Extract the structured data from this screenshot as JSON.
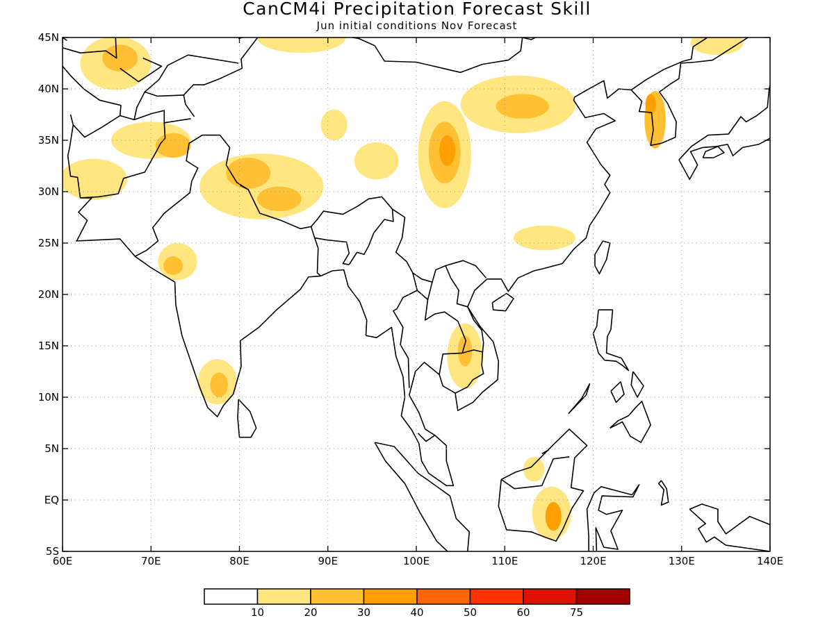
{
  "title": "CanCM4i Precipitation Forecast Skill",
  "subtitle": "Jun initial conditions   Nov Forecast",
  "map": {
    "lon_range": [
      60,
      140
    ],
    "lat_range": [
      -5,
      45
    ],
    "lon_ticks": [
      {
        "value": 60,
        "label": "60E"
      },
      {
        "value": 70,
        "label": "70E"
      },
      {
        "value": 80,
        "label": "80E"
      },
      {
        "value": 90,
        "label": "90E"
      },
      {
        "value": 100,
        "label": "100E"
      },
      {
        "value": 110,
        "label": "110E"
      },
      {
        "value": 120,
        "label": "120E"
      },
      {
        "value": 130,
        "label": "130E"
      },
      {
        "value": 140,
        "label": "140E"
      }
    ],
    "lat_ticks": [
      {
        "value": 45,
        "label": "45N"
      },
      {
        "value": 40,
        "label": "40N"
      },
      {
        "value": 35,
        "label": "35N"
      },
      {
        "value": 30,
        "label": "30N"
      },
      {
        "value": 25,
        "label": "25N"
      },
      {
        "value": 20,
        "label": "20N"
      },
      {
        "value": 15,
        "label": "15N"
      },
      {
        "value": 10,
        "label": "10N"
      },
      {
        "value": 5,
        "label": "5N"
      },
      {
        "value": 0,
        "label": "EQ"
      },
      {
        "value": -5,
        "label": "5S"
      }
    ],
    "grid": true,
    "skill_regions": [
      {
        "lon": 66,
        "lat": 42.5,
        "rx": 4,
        "ry": 2.6,
        "level": 1
      },
      {
        "lon": 66.5,
        "lat": 43,
        "rx": 2,
        "ry": 1.3,
        "level": 2
      },
      {
        "lon": 70,
        "lat": 35,
        "rx": 4.5,
        "ry": 1.8,
        "level": 1
      },
      {
        "lon": 72.5,
        "lat": 34.5,
        "rx": 2,
        "ry": 1.2,
        "level": 2
      },
      {
        "lon": 63.5,
        "lat": 31.2,
        "rx": 3.8,
        "ry": 2,
        "level": 1
      },
      {
        "lon": 87,
        "lat": 45,
        "rx": 5,
        "ry": 1.5,
        "level": 1
      },
      {
        "lon": 82.5,
        "lat": 30.5,
        "rx": 7,
        "ry": 3.2,
        "level": 1
      },
      {
        "lon": 81,
        "lat": 31.8,
        "rx": 2.5,
        "ry": 1.5,
        "level": 2
      },
      {
        "lon": 84.5,
        "lat": 29.3,
        "rx": 2.5,
        "ry": 1.2,
        "level": 2
      },
      {
        "lon": 73,
        "lat": 23.2,
        "rx": 2.2,
        "ry": 1.8,
        "level": 1
      },
      {
        "lon": 72.5,
        "lat": 22.8,
        "rx": 1.1,
        "ry": 0.9,
        "level": 2
      },
      {
        "lon": 77.5,
        "lat": 11.5,
        "rx": 2.2,
        "ry": 2.2,
        "level": 1
      },
      {
        "lon": 77.7,
        "lat": 11.2,
        "rx": 1,
        "ry": 1.2,
        "level": 2
      },
      {
        "lon": 95.5,
        "lat": 33,
        "rx": 2.5,
        "ry": 1.8,
        "level": 1
      },
      {
        "lon": 90.7,
        "lat": 36.5,
        "rx": 1.5,
        "ry": 1.5,
        "level": 1
      },
      {
        "lon": 103.2,
        "lat": 33.6,
        "rx": 3,
        "ry": 5.2,
        "level": 1
      },
      {
        "lon": 103.2,
        "lat": 33.8,
        "rx": 1.8,
        "ry": 3,
        "level": 2
      },
      {
        "lon": 103.5,
        "lat": 34,
        "rx": 0.9,
        "ry": 1.5,
        "level": 3
      },
      {
        "lon": 111.5,
        "lat": 38.5,
        "rx": 6.5,
        "ry": 2.8,
        "level": 1
      },
      {
        "lon": 112,
        "lat": 38.3,
        "rx": 3,
        "ry": 1.2,
        "level": 2
      },
      {
        "lon": 114.5,
        "lat": 25.5,
        "rx": 3.5,
        "ry": 1.2,
        "level": 1
      },
      {
        "lon": 105.5,
        "lat": 14,
        "rx": 2,
        "ry": 3.2,
        "level": 1
      },
      {
        "lon": 105.5,
        "lat": 14.5,
        "rx": 0.8,
        "ry": 1.5,
        "level": 2
      },
      {
        "lon": 115.3,
        "lat": -1.3,
        "rx": 2.2,
        "ry": 2.6,
        "level": 1
      },
      {
        "lon": 115.5,
        "lat": -1.6,
        "rx": 0.9,
        "ry": 1.4,
        "level": 3
      },
      {
        "lon": 113.3,
        "lat": 3,
        "rx": 1.2,
        "ry": 1.2,
        "level": 1
      },
      {
        "lon": 127,
        "lat": 37,
        "rx": 1.2,
        "ry": 2.8,
        "level": 2
      },
      {
        "lon": 126.5,
        "lat": 38.5,
        "rx": 0.6,
        "ry": 1,
        "level": 3
      },
      {
        "lon": 134,
        "lat": 44.5,
        "rx": 3,
        "ry": 1.2,
        "level": 1
      }
    ]
  },
  "colorbar": {
    "labels": [
      "10",
      "20",
      "30",
      "40",
      "50",
      "60",
      "75"
    ],
    "colors": [
      "#ffffff",
      "#ffe680",
      "#ffc033",
      "#ff9f00",
      "#ff6600",
      "#ff3300",
      "#dd1100",
      "#a00000"
    ]
  }
}
